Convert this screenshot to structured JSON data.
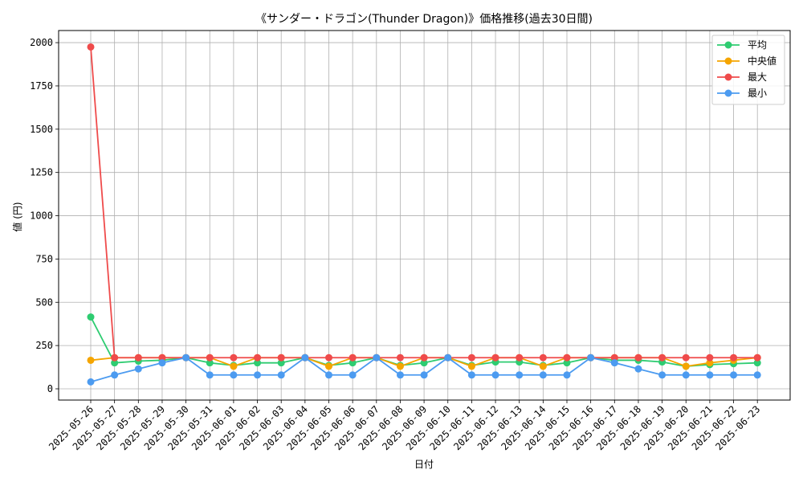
{
  "chart_data": {
    "type": "line",
    "title": "《サンダー・ドラゴン(Thunder Dragon)》価格推移(過去30日間)",
    "xlabel": "日付",
    "ylabel": "値 (円)",
    "ylim": [
      -65,
      2070
    ],
    "yticks": [
      0,
      250,
      500,
      750,
      1000,
      1250,
      1500,
      1750,
      2000
    ],
    "grid": true,
    "legend_position": "top-right",
    "categories": [
      "2025-05-26",
      "2025-05-27",
      "2025-05-28",
      "2025-05-29",
      "2025-05-30",
      "2025-05-31",
      "2025-06-01",
      "2025-06-02",
      "2025-06-03",
      "2025-06-04",
      "2025-06-05",
      "2025-06-06",
      "2025-06-07",
      "2025-06-08",
      "2025-06-09",
      "2025-06-10",
      "2025-06-11",
      "2025-06-12",
      "2025-06-13",
      "2025-06-14",
      "2025-06-15",
      "2025-06-16",
      "2025-06-17",
      "2025-06-18",
      "2025-06-19",
      "2025-06-20",
      "2025-06-21",
      "2025-06-22",
      "2025-06-23"
    ],
    "series": [
      {
        "name": "平均",
        "color": "#2ecc71",
        "values": [
          415,
          150,
          160,
          165,
          180,
          150,
          135,
          150,
          150,
          180,
          135,
          150,
          180,
          135,
          150,
          180,
          135,
          155,
          155,
          135,
          150,
          180,
          165,
          165,
          155,
          130,
          140,
          145,
          150
        ]
      },
      {
        "name": "中央値",
        "color": "#f5a500",
        "values": [
          165,
          180,
          180,
          180,
          180,
          180,
          130,
          180,
          180,
          180,
          130,
          180,
          180,
          130,
          180,
          180,
          130,
          180,
          180,
          130,
          180,
          180,
          180,
          180,
          180,
          130,
          150,
          165,
          180
        ]
      },
      {
        "name": "最大",
        "color": "#ef4b4b",
        "values": [
          1975,
          180,
          180,
          180,
          180,
          180,
          180,
          180,
          180,
          180,
          180,
          180,
          180,
          180,
          180,
          180,
          180,
          180,
          180,
          180,
          180,
          180,
          180,
          180,
          180,
          180,
          180,
          180,
          180
        ]
      },
      {
        "name": "最小",
        "color": "#4c9bf0",
        "values": [
          40,
          80,
          115,
          150,
          180,
          80,
          80,
          80,
          80,
          180,
          80,
          80,
          180,
          80,
          80,
          180,
          80,
          80,
          80,
          80,
          80,
          180,
          150,
          115,
          80,
          80,
          80,
          80,
          80
        ]
      }
    ]
  }
}
